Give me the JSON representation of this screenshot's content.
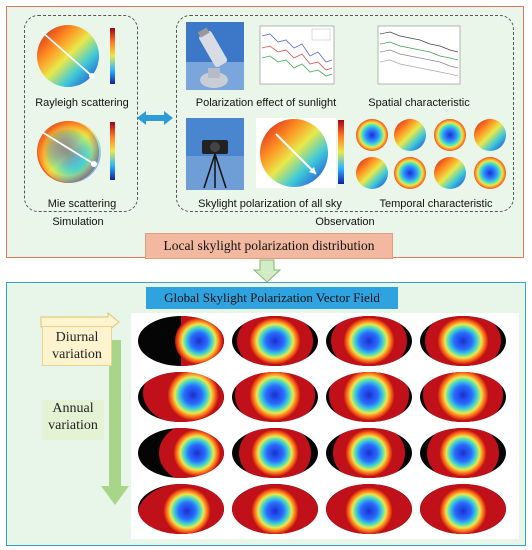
{
  "simulation": {
    "rayleigh_label": "Rayleigh scattering",
    "mie_label": "Mie scattering",
    "section_label": "Simulation"
  },
  "observation": {
    "sunlight_label": "Polarization effect of sunlight",
    "spatial_label": "Spatial characteristic",
    "allsky_label": "Skylight polarization of all sky",
    "temporal_label": "Temporal characteristic",
    "section_label": "Observation"
  },
  "local_banner": "Local skylight polarization distribution",
  "global_banner": "Global Skylight Polarization Vector Field",
  "diurnal_label": "Diurnal variation",
  "annual_label": "Annual variation",
  "colors": {
    "top_border": "#e07a5a",
    "bottom_border": "#3aa0c8",
    "local_banner_bg": "#f2b9a0",
    "global_banner_bg": "#2ea3e0",
    "diurnal_tag_bg": "#fdf3cf",
    "annual_arrow": "#a8d58a"
  },
  "icons": [
    "double-arrow-icon",
    "down-arrow-icon",
    "right-arrow-icon",
    "tripod-camera-icon",
    "telescope-icon"
  ]
}
